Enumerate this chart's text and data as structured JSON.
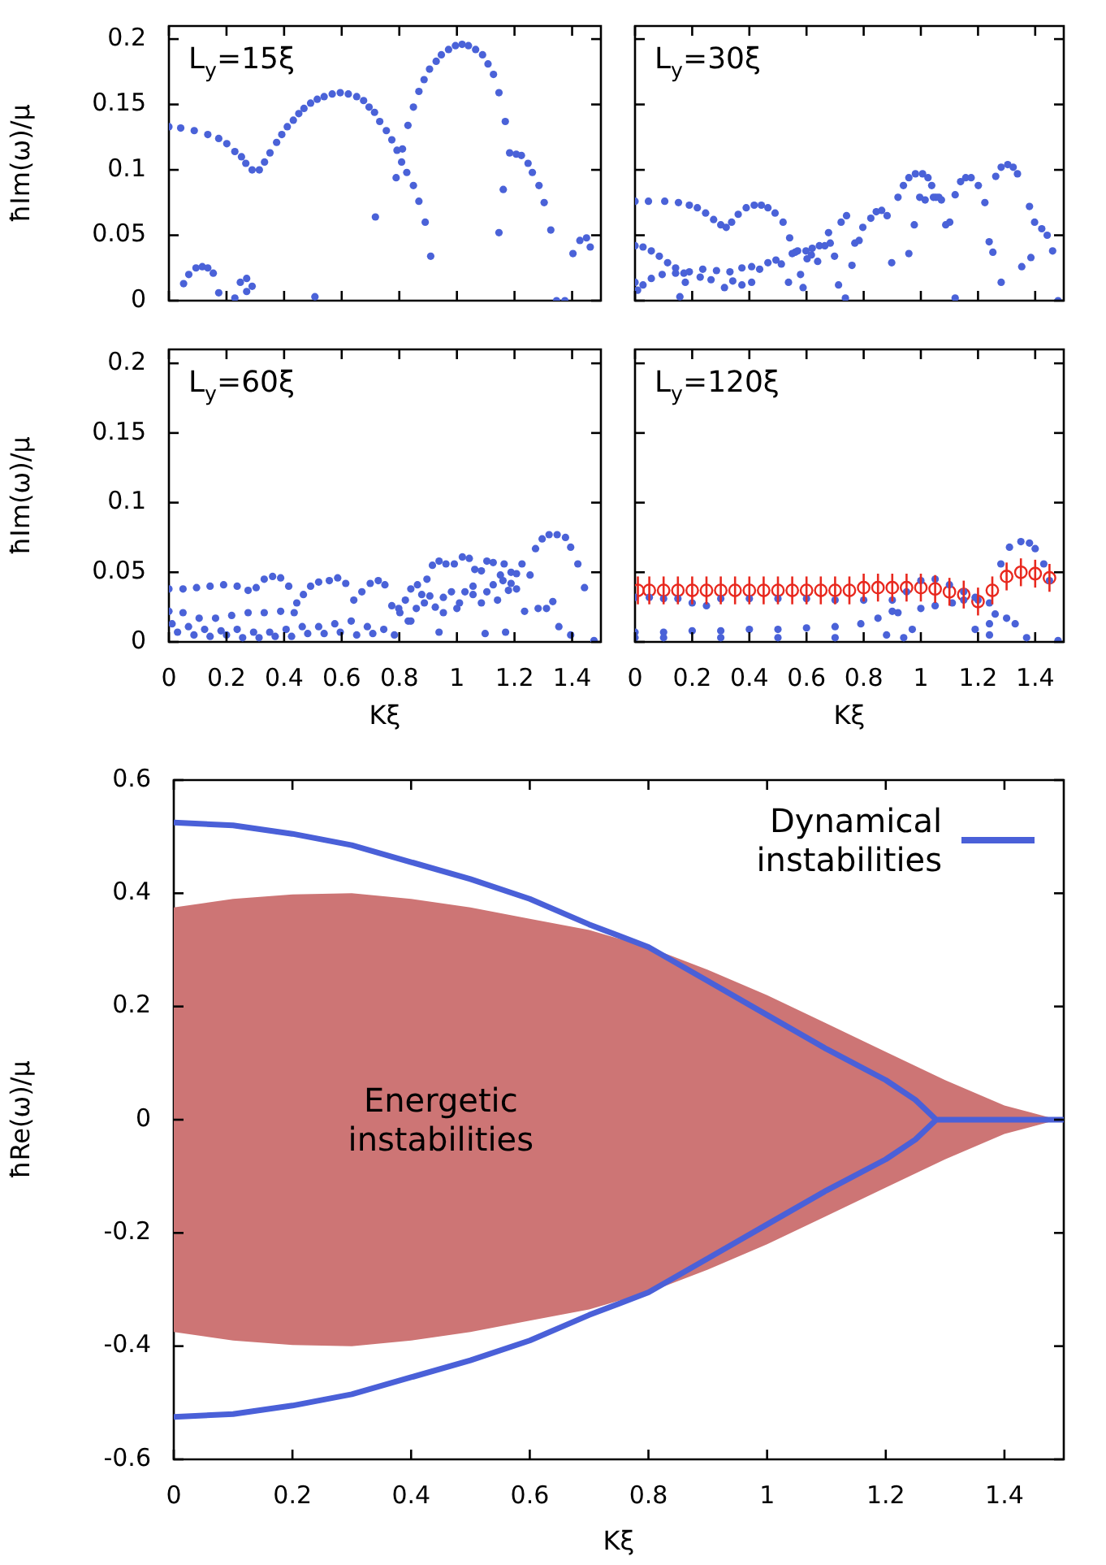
{
  "chart_data": [
    {
      "type": "scatter",
      "annotations": [
        "L$_{y}$=15ξ"
      ],
      "ylabel": "ħIm(ω)/μ",
      "xlim": [
        0,
        1.5
      ],
      "xticks": [
        0,
        0.2,
        0.4,
        0.6,
        0.8,
        1,
        1.2,
        1.4
      ],
      "ylim": [
        0,
        0.21
      ],
      "yticks": [
        0,
        0.05,
        0.1,
        0.15,
        0.2
      ],
      "tick_labels": "y",
      "marker": "circle",
      "series": [
        {
          "color": "#4a62d8",
          "x": [
            0,
            0.041,
            0.088,
            0.135,
            0.173,
            0.201,
            0.229,
            0.252,
            0.267,
            0.289,
            0.314,
            0.332,
            0.351,
            0.374,
            0.392,
            0.411,
            0.432,
            0.451,
            0.469,
            0.492,
            0.515,
            0.539,
            0.567,
            0.595,
            0.623,
            0.652,
            0.676,
            0.695,
            0.714,
            0.732,
            0.755,
            0.774,
            0.792,
            0.808,
            0.826,
            0.849,
            0.868,
            0.89,
            0.909,
            0.717,
            0.789,
            0.811,
            0.83,
            0.849,
            0.868,
            0.886,
            0.905,
            0.928,
            0.946,
            0.971,
            0.995,
            1.018,
            1.04,
            1.065,
            1.089,
            1.108,
            1.127,
            1.146,
            1.168,
            1.183,
            1.206,
            1.224,
            1.247,
            1.262,
            1.285,
            1.303,
            1.326,
            1.161,
            1.146,
            0.051,
            0.069,
            0.094,
            0.116,
            0.135,
            0.154,
            0.173,
            0.229,
            0.248,
            0.27,
            0.289,
            0.27,
            0.507,
            1.346,
            1.375,
            1.403,
            1.427,
            1.45,
            1.463
          ],
          "values": [
            0.133,
            0.132,
            0.13,
            0.127,
            0.124,
            0.12,
            0.114,
            0.11,
            0.105,
            0.1,
            0.1,
            0.106,
            0.113,
            0.121,
            0.127,
            0.133,
            0.138,
            0.143,
            0.147,
            0.151,
            0.154,
            0.156,
            0.158,
            0.159,
            0.158,
            0.156,
            0.153,
            0.148,
            0.144,
            0.137,
            0.13,
            0.123,
            0.115,
            0.106,
            0.098,
            0.088,
            0.076,
            0.06,
            0.034,
            0.064,
            0.094,
            0.116,
            0.134,
            0.148,
            0.16,
            0.169,
            0.177,
            0.183,
            0.188,
            0.192,
            0.195,
            0.196,
            0.195,
            0.192,
            0.188,
            0.181,
            0.173,
            0.159,
            0.137,
            0.113,
            0.112,
            0.111,
            0.105,
            0.098,
            0.088,
            0.075,
            0.054,
            0.085,
            0.052,
            0.013,
            0.02,
            0.025,
            0.026,
            0.025,
            0.021,
            0.006,
            0.002,
            0.014,
            0.017,
            0.011,
            0.007,
            0.003,
            0,
            0,
            0.036,
            0.046,
            0.048,
            0.041
          ]
        }
      ]
    },
    {
      "type": "scatter",
      "annotations": [
        "L$_{y}$=30ξ"
      ],
      "xlim": [
        0,
        1.5
      ],
      "xticks": [
        0,
        0.2,
        0.4,
        0.6,
        0.8,
        1,
        1.2,
        1.4
      ],
      "ylim": [
        0,
        0.21
      ],
      "yticks": [
        0,
        0.05,
        0.1,
        0.15,
        0.2
      ],
      "tick_labels": false,
      "marker": "circle",
      "series": [
        {
          "color": "#4a62d8",
          "x": [
            0,
            0.047,
            0.104,
            0.152,
            0.19,
            0.218,
            0.247,
            0.275,
            0.3,
            0.319,
            0.338,
            0.361,
            0.389,
            0.417,
            0.442,
            0.465,
            0.49,
            0.518,
            0.541,
            0,
            0.028,
            0.057,
            0.085,
            0.114,
            0.142,
            0.171,
            0,
            0.028,
            0.057,
            0.095,
            0.142,
            0.19,
            0.237,
            0.285,
            0.332,
            0.374,
            0.408,
            0.436,
            0.465,
            0.493,
            0.512,
            0.009,
            0.157,
            0.176,
            0.228,
            0.266,
            0.313,
            0.342,
            0.374,
            0.408,
            0.537,
            0.56,
            0.579,
            0.588,
            0.602,
            0.62,
            0.645,
            0.664,
            0.683,
            0.698,
            0.712,
            0.736,
            0.759,
            0.769,
            0.784,
            0.797,
            0.825,
            0.844,
            0.863,
            0.882,
            0.898,
            0.92,
            0.939,
            0.958,
            0.981,
            1.006,
            1.025,
            1.038,
            1.053,
            1.072,
            1.087,
            1.101,
            1.12,
            1.139,
            1.157,
            1.176,
            1.201,
            1.224,
            1.239,
            1.252,
            1.262,
            1.281,
            1.304,
            1.323,
            1.338,
            1.353,
            1.38,
            1.385,
            1.398,
            1.423,
            1.442,
            1.461,
            1.48,
            0.958,
            0.977,
            0.996,
            1.015,
            1.044,
            1.063,
            1.12,
            1.281,
            0.74,
            0.721,
            0.677,
            0.639,
            0.617,
            0.598,
            0.569,
            0.55
          ],
          "values": [
            0.076,
            0.076,
            0.076,
            0.075,
            0.073,
            0.071,
            0.067,
            0.062,
            0.058,
            0.056,
            0.06,
            0.066,
            0.071,
            0.073,
            0.073,
            0.071,
            0.067,
            0.06,
            0.048,
            0.042,
            0.041,
            0.038,
            0.034,
            0.029,
            0.025,
            0.021,
            0.014,
            0.012,
            0.017,
            0.02,
            0.021,
            0.022,
            0.024,
            0.023,
            0.022,
            0.025,
            0.026,
            0.024,
            0.029,
            0.031,
            0.028,
            0.008,
            0.003,
            0.014,
            0.018,
            0.016,
            0.01,
            0.015,
            0.012,
            0.014,
            0.014,
            0.037,
            0.02,
            0.01,
            0.032,
            0.04,
            0.042,
            0.042,
            0.044,
            0.034,
            0.012,
            0.002,
            0.027,
            0.044,
            0.046,
            0.056,
            0.063,
            0.068,
            0.069,
            0.065,
            0.029,
            0.079,
            0.088,
            0.094,
            0.097,
            0.097,
            0.094,
            0.088,
            0.079,
            0.077,
            0.058,
            0.06,
            0.081,
            0.091,
            0.094,
            0.094,
            0.088,
            0.075,
            0.045,
            0.037,
            0.095,
            0.102,
            0.104,
            0.102,
            0.097,
            0.026,
            0.072,
            0.033,
            0.06,
            0.055,
            0.05,
            0.038,
            0,
            0.036,
            0.058,
            0.079,
            0.077,
            0.079,
            0.079,
            0.002,
            0.014,
            0.065,
            0.06,
            0.052,
            0.03,
            0.035,
            0.038,
            0.038,
            0.036
          ]
        }
      ]
    },
    {
      "type": "scatter",
      "annotations": [
        "L$_{y}$=60ξ"
      ],
      "xlabel": "Kξ",
      "ylabel": "ħIm(ω)/μ",
      "xlim": [
        0,
        1.5
      ],
      "xticks": [
        0,
        0.2,
        0.4,
        0.6,
        0.8,
        1,
        1.2,
        1.4
      ],
      "ylim": [
        0,
        0.21
      ],
      "yticks": [
        0,
        0.05,
        0.1,
        0.15,
        0.2
      ],
      "marker": "circle",
      "series": [
        {
          "color": "#4a62d8",
          "x": [
            0,
            0.049,
            0.096,
            0.143,
            0.19,
            0.237,
            0.275,
            0.303,
            0.331,
            0.36,
            0.388,
            0.416,
            0.444,
            0.467,
            0.492,
            0.52,
            0.557,
            0.586,
            0.614,
            0.642,
            0.67,
            0.699,
            0.727,
            0.75,
            0.774,
            0,
            0.049,
            0.105,
            0.162,
            0.218,
            0.275,
            0.331,
            0.388,
            0.435,
            0.011,
            0.068,
            0.124,
            0.181,
            0.237,
            0.294,
            0.35,
            0.407,
            0.463,
            0.52,
            0.576,
            0.633,
            0.689,
            0.746,
            0.783,
            0.03,
            0.087,
            0.143,
            0.2,
            0.256,
            0.313,
            0.369,
            0.426,
            0.482,
            0.539,
            0.595,
            0.652,
            0.708,
            0.798,
            0.821,
            0.84,
            0.863,
            0.878,
            0.896,
            0.915,
            0.938,
            0.962,
            0.991,
            1.019,
            1.043,
            1.062,
            1.085,
            1.104,
            1.126,
            1.151,
            1.164,
            1.188,
            1.207,
            1.226,
            1.254,
            1.273,
            1.296,
            1.32,
            1.348,
            1.377,
            1.395,
            1.42,
            1.443,
            0.802,
            0.831,
            0.859,
            0.887,
            0.906,
            0.925,
            0.953,
            0.981,
            1.0,
            1.028,
            1.056,
            1.085,
            1.104,
            1.126,
            1.141,
            1.16,
            1.188,
            1.207,
            1.235,
            1.282,
            1.311,
            1.333,
            1.354,
            1.395,
            1.476,
            0.938,
            1.098,
            1.169,
            0.84,
            0.953,
            1.009,
            1.056,
            1.179
          ],
          "values": [
            0.038,
            0.038,
            0.039,
            0.04,
            0.041,
            0.04,
            0.037,
            0.039,
            0.045,
            0.047,
            0.046,
            0.04,
            0.028,
            0.034,
            0.04,
            0.043,
            0.044,
            0.046,
            0.042,
            0.03,
            0.036,
            0.042,
            0.044,
            0.041,
            0.026,
            0.022,
            0.021,
            0.017,
            0.017,
            0.019,
            0.021,
            0.021,
            0.022,
            0.021,
            0.013,
            0.011,
            0.009,
            0.008,
            0.009,
            0.007,
            0.007,
            0.009,
            0.011,
            0.011,
            0.013,
            0.015,
            0.011,
            0.009,
            0.005,
            0.007,
            0.005,
            0.004,
            0.005,
            0.003,
            0.003,
            0.004,
            0.004,
            0.006,
            0.006,
            0.007,
            0.005,
            0.006,
            0.024,
            0.03,
            0.038,
            0.041,
            0.034,
            0.045,
            0.055,
            0.058,
            0.056,
            0.056,
            0.061,
            0.06,
            0.052,
            0.051,
            0.058,
            0.057,
            0.048,
            0.056,
            0.05,
            0.049,
            0.056,
            0.048,
            0.067,
            0.074,
            0.077,
            0.077,
            0.075,
            0.068,
            0.056,
            0.039,
            0.021,
            0.015,
            0.024,
            0.028,
            0.033,
            0.025,
            0.032,
            0.036,
            0.024,
            0.036,
            0.034,
            0.028,
            0.036,
            0.041,
            0.03,
            0.044,
            0.042,
            0.038,
            0.022,
            0.024,
            0.024,
            0.029,
            0.011,
            0.005,
            0.001,
            0.007,
            0.006,
            0.007,
            0.015,
            0.021,
            0.028,
            0.04,
            0.037
          ]
        }
      ]
    },
    {
      "type": "scatter",
      "annotations": [
        "L$_{y}$=120ξ"
      ],
      "xlabel": "Kξ",
      "xlim": [
        0,
        1.5
      ],
      "xticks": [
        0,
        0.2,
        0.4,
        0.6,
        0.8,
        1,
        1.2,
        1.4
      ],
      "ylim": [
        0,
        0.21
      ],
      "yticks": [
        0,
        0.05,
        0.1,
        0.15,
        0.2
      ],
      "tick_labels": "x",
      "marker": "circle",
      "series": [
        {
          "color": "#4a62d8",
          "x": [
            0,
            0.05,
            0.1,
            0.15,
            0.2,
            0.25,
            0.3,
            0.4,
            0.5,
            0.6,
            0.7,
            0.8,
            0.9,
            0.95,
            1.0,
            1.05,
            1.1,
            1.15,
            1.2,
            1.24,
            1.28,
            1.31,
            1.35,
            1.38,
            1.4,
            1.43,
            1.45,
            0,
            0.1,
            0.2,
            0.3,
            0.4,
            0.5,
            0.6,
            0.7,
            0.79,
            0.85,
            0.92,
            1.0,
            1.05,
            1.11,
            1.15,
            1.19,
            0,
            0.1,
            0.3,
            0.5,
            0.7,
            0.88,
            0.94,
            1.19,
            1.24,
            1.3,
            1.33,
            1.37,
            1.48,
            0.9,
            0.97,
            1.24,
            1.26
          ],
          "values": [
            0.032,
            0.032,
            0.031,
            0.031,
            0.028,
            0.026,
            0.031,
            0.031,
            0.031,
            0.031,
            0.03,
            0.03,
            0.03,
            0.036,
            0.044,
            0.045,
            0.041,
            0.036,
            0.03,
            0.028,
            0.056,
            0.068,
            0.072,
            0.071,
            0.067,
            0.056,
            0.044,
            0.007,
            0.007,
            0.008,
            0.008,
            0.009,
            0.009,
            0.01,
            0.011,
            0.013,
            0.017,
            0.021,
            0.024,
            0.026,
            0.028,
            0.03,
            0.032,
            0.003,
            0.003,
            0.003,
            0.003,
            0.003,
            0.005,
            0.003,
            0.009,
            0.005,
            0.017,
            0.013,
            0.003,
            0.001,
            0.022,
            0.009,
            0.013,
            0.02
          ]
        },
        {
          "color": "#e8281e",
          "x": [
            0.01,
            0.05,
            0.1,
            0.15,
            0.2,
            0.25,
            0.3,
            0.35,
            0.4,
            0.45,
            0.5,
            0.55,
            0.6,
            0.65,
            0.7,
            0.75,
            0.8,
            0.85,
            0.9,
            0.95,
            1.0,
            1.05,
            1.1,
            1.15,
            1.2,
            1.25,
            1.3,
            1.35,
            1.4,
            1.45
          ],
          "values": [
            0.037,
            0.037,
            0.037,
            0.037,
            0.037,
            0.037,
            0.037,
            0.037,
            0.037,
            0.037,
            0.037,
            0.037,
            0.037,
            0.037,
            0.037,
            0.037,
            0.039,
            0.039,
            0.039,
            0.039,
            0.039,
            0.038,
            0.036,
            0.034,
            0.029,
            0.037,
            0.047,
            0.05,
            0.049,
            0.046
          ],
          "errors": [
            0.01,
            0.01,
            0.01,
            0.01,
            0.01,
            0.01,
            0.01,
            0.01,
            0.01,
            0.01,
            0.01,
            0.01,
            0.01,
            0.01,
            0.01,
            0.01,
            0.01,
            0.01,
            0.01,
            0.01,
            0.01,
            0.01,
            0.01,
            0.01,
            0.01,
            0.01,
            0.01,
            0.01,
            0.01,
            0.01
          ]
        }
      ]
    },
    {
      "type": "line",
      "xlabel": "Kξ",
      "ylabel": "ħRe(ω)/μ",
      "xlim": [
        0,
        1.5
      ],
      "xticks": [
        0,
        0.2,
        0.4,
        0.6,
        0.8,
        1,
        1.2,
        1.4
      ],
      "ylim": [
        -0.6,
        0.6
      ],
      "yticks": [
        -0.6,
        -0.4,
        -0.2,
        0,
        0.2,
        0.4,
        0.6
      ],
      "legend": "top right",
      "series": [
        {
          "type": "area",
          "name": "Energetic instabilities",
          "color": "#cd7575",
          "x": [
            0,
            0.1,
            0.2,
            0.3,
            0.4,
            0.5,
            0.6,
            0.7,
            0.8,
            0.9,
            1.0,
            1.1,
            1.2,
            1.3,
            1.4,
            1.49
          ],
          "values": [
            0.375,
            0.39,
            0.398,
            0.4,
            0.39,
            0.375,
            0.355,
            0.335,
            0.305,
            0.265,
            0.22,
            0.17,
            0.12,
            0.07,
            0.025,
            0
          ]
        },
        {
          "type": "area",
          "color": "#cd7575",
          "x": [
            0,
            0.1,
            0.2,
            0.3,
            0.4,
            0.5,
            0.6,
            0.7,
            0.8,
            0.9,
            1.0,
            1.1,
            1.2,
            1.3,
            1.4,
            1.49
          ],
          "values": [
            -0.375,
            -0.39,
            -0.398,
            -0.4,
            -0.39,
            -0.375,
            -0.355,
            -0.335,
            -0.305,
            -0.265,
            -0.22,
            -0.17,
            -0.12,
            -0.07,
            -0.025,
            0
          ]
        },
        {
          "name": "Dynamical instabilities",
          "color": "#4a60d8",
          "x": [
            0,
            0.1,
            0.2,
            0.3,
            0.4,
            0.5,
            0.6,
            0.7,
            0.8,
            0.9,
            1.0,
            1.1,
            1.2,
            1.25,
            1.285,
            1.5,
            1.285,
            1.25,
            1.2,
            1.1,
            1.0,
            0.9,
            0.8,
            0.7,
            0.6,
            0.5,
            0.4,
            0.3,
            0.2,
            0.1,
            0
          ],
          "values": [
            0.525,
            0.52,
            0.505,
            0.485,
            0.455,
            0.425,
            0.39,
            0.345,
            0.305,
            0.245,
            0.185,
            0.125,
            0.07,
            0.035,
            0,
            0,
            0,
            -0.035,
            -0.07,
            -0.125,
            -0.185,
            -0.245,
            -0.305,
            -0.345,
            -0.39,
            -0.425,
            -0.455,
            -0.485,
            -0.505,
            -0.52,
            -0.525
          ]
        }
      ]
    }
  ]
}
